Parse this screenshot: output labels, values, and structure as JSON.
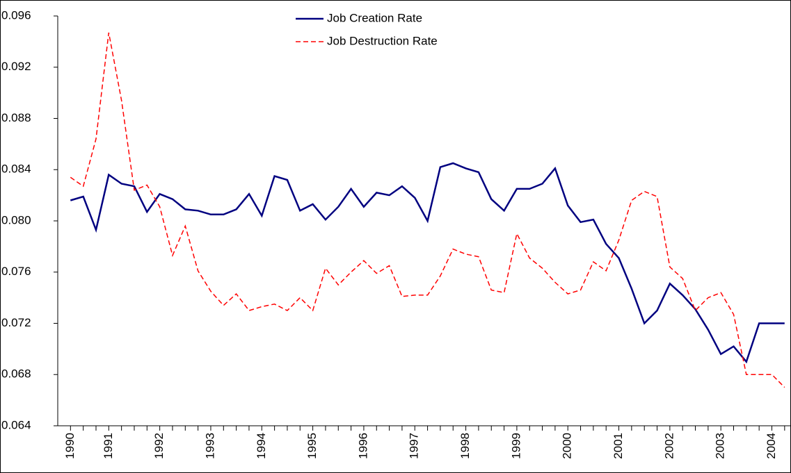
{
  "chart_data": {
    "type": "line",
    "categories": [
      "1990",
      null,
      null,
      "1991",
      null,
      null,
      null,
      "1992",
      null,
      null,
      null,
      "1993",
      null,
      null,
      null,
      "1994",
      null,
      null,
      null,
      "1995",
      null,
      null,
      null,
      "1996",
      null,
      null,
      null,
      "1997",
      null,
      null,
      null,
      "1998",
      null,
      null,
      null,
      "1999",
      null,
      null,
      null,
      "2000",
      null,
      null,
      null,
      "2001",
      null,
      null,
      null,
      "2002",
      null,
      null,
      null,
      "2003",
      null,
      null,
      null,
      "2004",
      null
    ],
    "series": [
      {
        "name": "Job Creation Rate",
        "color": "#000080",
        "dash": false,
        "values": [
          0.0816,
          0.0819,
          0.0793,
          0.0836,
          0.0829,
          0.0827,
          0.0807,
          0.0821,
          0.0817,
          0.0809,
          0.0808,
          0.0805,
          0.0805,
          0.0809,
          0.0821,
          0.0804,
          0.0835,
          0.0832,
          0.0808,
          0.0813,
          0.0801,
          0.0811,
          0.0825,
          0.0811,
          0.0822,
          0.082,
          0.0827,
          0.0818,
          0.08,
          0.0842,
          0.0845,
          0.0841,
          0.0838,
          0.0817,
          0.0808,
          0.0825,
          0.0825,
          0.0829,
          0.0841,
          0.0812,
          0.0799,
          0.0801,
          0.0782,
          0.0771,
          0.0747,
          0.072,
          0.073,
          0.0751,
          0.0742,
          0.0731,
          0.0715,
          0.0696,
          0.0702,
          0.069,
          0.072,
          0.072,
          0.072
        ]
      },
      {
        "name": "Job Destruction Rate",
        "color": "#ff0000",
        "dash": true,
        "values": [
          0.0834,
          0.0827,
          0.0864,
          0.0947,
          0.0894,
          0.0824,
          0.0828,
          0.0811,
          0.0773,
          0.0796,
          0.0761,
          0.0745,
          0.0734,
          0.0743,
          0.073,
          0.0733,
          0.0735,
          0.073,
          0.074,
          0.073,
          0.0763,
          0.075,
          0.076,
          0.0769,
          0.0759,
          0.0765,
          0.0741,
          0.0742,
          0.0742,
          0.0757,
          0.0778,
          0.0774,
          0.0772,
          0.0746,
          0.0744,
          0.079,
          0.0771,
          0.0763,
          0.0752,
          0.0743,
          0.0746,
          0.0768,
          0.0761,
          0.0785,
          0.0816,
          0.0823,
          0.0819,
          0.0764,
          0.0755,
          0.073,
          0.074,
          0.0744,
          0.0727,
          0.068,
          0.068,
          0.068,
          0.067
        ]
      }
    ],
    "ylim": [
      0.064,
      0.096
    ],
    "yticks": [
      0.064,
      0.068,
      0.072,
      0.076,
      {
        "value": 0.08,
        "label": "0.080"
      },
      0.084,
      0.088,
      0.092,
      0.096
    ],
    "grid": false,
    "legend": "top"
  }
}
